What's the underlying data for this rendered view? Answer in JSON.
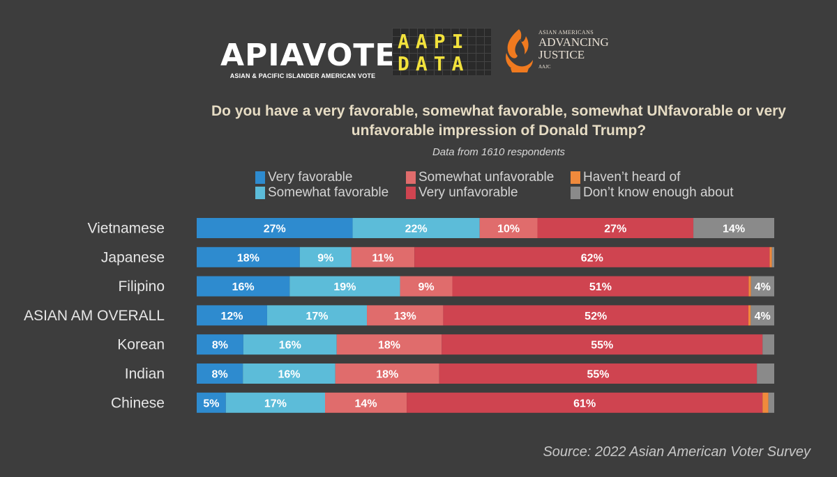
{
  "logos": {
    "apiavote_name": "APIAVOTE",
    "apiavote_tagline": "ASIAN & PACIFIC ISLANDER AMERICAN VOTE",
    "aapi_line1": "AAPI",
    "aapi_line2": "DATA",
    "aajc_top": "ASIAN AMERICANS",
    "aajc_line1": "ADVANCING",
    "aajc_line2": "JUSTICE",
    "aajc_bottom": "AAJC"
  },
  "chart_data": {
    "type": "bar",
    "orientation": "horizontal",
    "stacked": true,
    "title": "Do you have a very favorable, somewhat favorable, somewhat UNfavorable or very unfavorable impression of Donald Trump?",
    "subtitle": "Data from 1610 respondents",
    "source": "Source: 2022 Asian American Voter Survey",
    "legend_position": "top",
    "categories": [
      "Vietnamese",
      "Japanese",
      "Filipino",
      "ASIAN AM OVERALL",
      "Korean",
      "Indian",
      "Chinese"
    ],
    "series": [
      {
        "name": "Very favorable",
        "color": "#2e8bcf",
        "values": [
          27,
          18,
          16,
          12,
          8,
          8,
          5
        ]
      },
      {
        "name": "Somewhat favorable",
        "color": "#5cbcd9",
        "values": [
          22,
          9,
          19,
          17,
          16,
          16,
          17
        ]
      },
      {
        "name": "Somewhat unfavorable",
        "color": "#e06c6c",
        "values": [
          10,
          11,
          9,
          13,
          18,
          18,
          14
        ]
      },
      {
        "name": "Very unfavorable",
        "color": "#cf4450",
        "values": [
          27,
          62,
          51,
          52,
          55,
          55,
          61
        ]
      },
      {
        "name": "Haven't heard of",
        "color": "#f08a3c",
        "values": [
          0,
          0.4,
          0.4,
          0.4,
          0,
          0,
          1
        ]
      },
      {
        "name": "Don't know enough about",
        "color": "#8a8a8a",
        "values": [
          14,
          0.4,
          4,
          4,
          2,
          3,
          1
        ]
      }
    ],
    "data_labels": [
      [
        "27%",
        "22%",
        "10%",
        "27%",
        "",
        "14%"
      ],
      [
        "18%",
        "9%",
        "11%",
        "62%",
        "",
        ""
      ],
      [
        "16%",
        "19%",
        "9%",
        "51%",
        "",
        "4%"
      ],
      [
        "12%",
        "17%",
        "13%",
        "52%",
        "",
        "4%"
      ],
      [
        "8%",
        "16%",
        "18%",
        "55%",
        "",
        ""
      ],
      [
        "8%",
        "16%",
        "18%",
        "55%",
        "",
        ""
      ],
      [
        "5%",
        "17%",
        "14%",
        "61%",
        "",
        ""
      ]
    ]
  },
  "legend": [
    {
      "label": "Very favorable",
      "color": "#2e8bcf"
    },
    {
      "label": "Somewhat favorable",
      "color": "#5cbcd9"
    },
    {
      "label": "Somewhat unfavorable",
      "color": "#e06c6c"
    },
    {
      "label": "Very unfavorable",
      "color": "#cf4450"
    },
    {
      "label": "Haven’t heard of",
      "color": "#f08a3c"
    },
    {
      "label": "Don’t know enough about",
      "color": "#8a8a8a"
    }
  ]
}
